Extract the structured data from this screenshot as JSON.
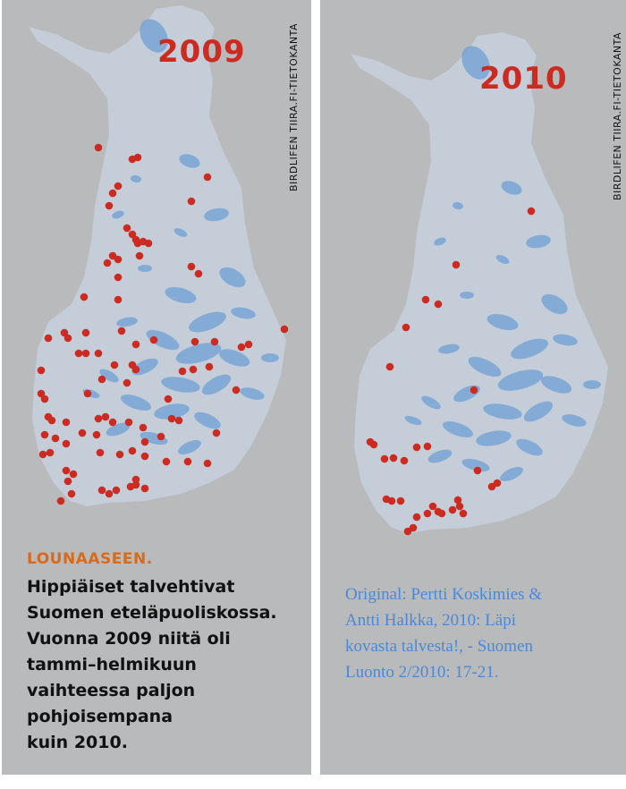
{
  "left_panel": {
    "year": "2009",
    "credit": "BIRDLIFEN TIIRA.FI-TIETOKANTA",
    "caption_heading": "LOUNAASEEN.",
    "caption_lines": [
      "Hippiäiset talvehtivat",
      "Suomen eteläpuoliskossa.",
      "Vuonna 2009 niitä oli",
      "tammi–helmikuun",
      "vaihteessa paljon",
      "pohjoisempana",
      "kuin 2010."
    ]
  },
  "right_panel": {
    "year": "2010",
    "credit": "BIRDLIFEN TIIRA.FI-TIETOKANTA",
    "source_lines": [
      "Original: Pertti Koskimies &",
      "Antti Halkka, 2010: Läpi",
      "kovasta talvesta!, - Suomen",
      "Luonto 2/2010: 17-21."
    ]
  },
  "colors": {
    "background": "#b9babc",
    "land": "#c4cdd8",
    "lakes": "#6f9fd6",
    "observation_dot": "#cc2b22",
    "year_text": "#cc2b22",
    "caption_heading": "#d86a1c",
    "source_text": "#4a88d8"
  }
}
